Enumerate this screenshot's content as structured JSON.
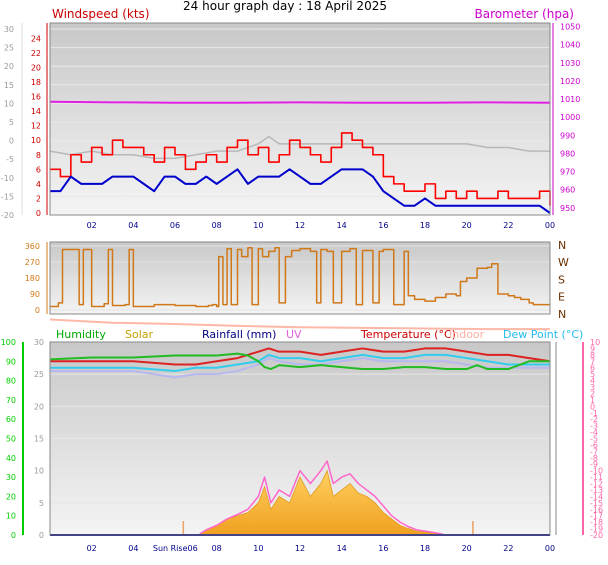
{
  "title": "24 hour graph day : 18 April 2025",
  "colors": {
    "wind_avg": "#0000cc",
    "wind_gust": "#ff0000",
    "barometer": "#e020e0",
    "wind_dir": "#d07818",
    "humidity": "#22bb22",
    "temperature": "#dd2222",
    "dew_point": "#33ccee",
    "indoor": "#ffb8a8",
    "solar": "#ffc040",
    "uv": "#ff66cc",
    "rainfall": "#000080",
    "axis_left_wind": "#cc0000",
    "axis_right_baro": "#cc00cc",
    "axis_left_green": "#00cc00",
    "axis_right_pink": "#ff66aa"
  },
  "chart_data": [
    {
      "type": "line",
      "panel": "wind-barometer",
      "left_axis_title": "Windspeed (kts)",
      "right_axis_title": "Barometer (hpa)",
      "x_ticks": [
        "02",
        "04",
        "06",
        "08",
        "10",
        "12",
        "14",
        "16",
        "18",
        "20",
        "22",
        "00"
      ],
      "x_range_hours": [
        0,
        24
      ],
      "y_outer_ticks": [
        "30",
        "25",
        "20",
        "15",
        "10",
        "5",
        "0",
        "-5",
        "-10",
        "-15",
        "-20"
      ],
      "y_left_ticks": [
        "24",
        "22",
        "20",
        "18",
        "16",
        "14",
        "12",
        "10",
        "8",
        "6",
        "4",
        "2",
        "0"
      ],
      "y_left_range": [
        0,
        25
      ],
      "y_right_ticks": [
        "1050",
        "1040",
        "1030",
        "1020",
        "1010",
        "1000",
        "990",
        "980",
        "970",
        "960",
        "950"
      ],
      "y_right_range": [
        946,
        1052
      ],
      "series": [
        {
          "key": "gust",
          "x": [
            0,
            0.5,
            1,
            1.5,
            2,
            2.5,
            3,
            3.5,
            4,
            4.5,
            5,
            5.5,
            6,
            6.5,
            7,
            7.5,
            8,
            8.5,
            9,
            9.5,
            10,
            10.5,
            11,
            11.5,
            12,
            12.5,
            13,
            13.5,
            14,
            14.5,
            15,
            15.5,
            16,
            16.5,
            17,
            17.5,
            18,
            18.5,
            19,
            19.5,
            20,
            20.5,
            21,
            21.5,
            22,
            22.5,
            23,
            23.5,
            24
          ],
          "y": [
            6,
            5,
            8,
            7,
            9,
            8,
            10,
            9,
            9,
            8,
            7,
            9,
            8,
            6,
            7,
            8,
            7,
            9,
            10,
            8,
            9,
            7,
            8,
            10,
            9,
            8,
            7,
            9,
            11,
            10,
            9,
            8,
            5,
            4,
            3,
            3,
            4,
            2,
            3,
            2,
            3,
            2,
            2,
            3,
            2,
            2,
            2,
            3,
            1
          ]
        },
        {
          "key": "average",
          "x": [
            0,
            0.5,
            1,
            1.5,
            2,
            2.5,
            3,
            3.5,
            4,
            4.5,
            5,
            5.5,
            6,
            6.5,
            7,
            7.5,
            8,
            8.5,
            9,
            9.5,
            10,
            10.5,
            11,
            11.5,
            12,
            12.5,
            13,
            13.5,
            14,
            14.5,
            15,
            15.5,
            16,
            16.5,
            17,
            17.5,
            18,
            18.5,
            19,
            19.5,
            20,
            20.5,
            21,
            21.5,
            22,
            22.5,
            23,
            23.5,
            24
          ],
          "y": [
            3,
            3,
            5,
            4,
            4,
            4,
            5,
            5,
            5,
            4,
            3,
            5,
            5,
            4,
            4,
            5,
            4,
            5,
            6,
            4,
            5,
            5,
            5,
            6,
            5,
            4,
            4,
            5,
            6,
            6,
            6,
            5,
            3,
            2,
            1,
            1,
            2,
            1,
            1,
            1,
            1,
            1,
            1,
            1,
            1,
            1,
            1,
            1,
            0
          ]
        },
        {
          "key": "barometer",
          "x": [
            0,
            3,
            6,
            9,
            12,
            15,
            18,
            21,
            24
          ],
          "y": [
            1008.5,
            1008.2,
            1008,
            1008,
            1008.2,
            1008,
            1008,
            1008.2,
            1008
          ]
        },
        {
          "key": "gray-trace",
          "x": [
            0,
            1,
            2,
            3,
            4,
            5,
            6,
            7,
            8,
            9,
            10,
            10.5,
            11,
            12,
            13,
            14,
            15,
            16,
            17,
            18,
            19,
            20,
            21,
            22,
            23,
            24
          ],
          "y": [
            8.5,
            8,
            8.5,
            8,
            8,
            7.5,
            7.5,
            8,
            8.5,
            8.5,
            9.5,
            10.5,
            9.5,
            9.5,
            9.5,
            9.5,
            9.5,
            9.5,
            9.5,
            9.5,
            9.5,
            9.5,
            9,
            9,
            8.5,
            8.5
          ]
        }
      ]
    },
    {
      "type": "line",
      "panel": "wind-direction",
      "compass_labels": [
        "N",
        "W",
        "S",
        "E",
        "N"
      ],
      "y_left_ticks": [
        "360",
        "270",
        "180",
        "90",
        "0"
      ],
      "y_range": [
        0,
        360
      ],
      "x": [
        0,
        0.4,
        0.6,
        1.4,
        1.6,
        2,
        2.6,
        2.8,
        3,
        3.6,
        3.8,
        4,
        5,
        6,
        7,
        7.6,
        7.8,
        8,
        8.1,
        8.3,
        8.5,
        8.7,
        9,
        9.2,
        9.5,
        9.7,
        10,
        10.2,
        10.5,
        10.8,
        11,
        11.3,
        11.6,
        12,
        12.5,
        12.8,
        13,
        13.3,
        13.6,
        14,
        14.4,
        14.7,
        15,
        15.5,
        15.8,
        16,
        16.5,
        17,
        17.2,
        17.5,
        18,
        18.5,
        19,
        19.5,
        19.7,
        20,
        20.5,
        21,
        21.2,
        21.5,
        22,
        22.3,
        22.6,
        23,
        23.2,
        24
      ],
      "y": [
        20,
        40,
        340,
        30,
        340,
        20,
        35,
        340,
        25,
        30,
        340,
        20,
        30,
        25,
        20,
        25,
        30,
        20,
        300,
        30,
        345,
        30,
        340,
        300,
        350,
        30,
        345,
        300,
        330,
        350,
        40,
        300,
        335,
        345,
        330,
        40,
        340,
        330,
        40,
        330,
        345,
        30,
        335,
        40,
        330,
        340,
        30,
        330,
        80,
        60,
        50,
        70,
        90,
        80,
        160,
        180,
        235,
        240,
        260,
        90,
        80,
        70,
        60,
        40,
        30,
        30
      ]
    },
    {
      "type": "line",
      "panel": "temperature-humidity-solar",
      "legend": [
        "Humidity",
        "Solar",
        "Rainfall (mm)",
        "UV",
        "Temperature (°C)",
        "Indoor",
        "Dew Point (°C)"
      ],
      "x_ticks": [
        "02",
        "04",
        "Sun Rise",
        "06",
        "08",
        "10",
        "12",
        "14",
        "16",
        "18",
        "20",
        "22",
        "00"
      ],
      "y_left_green_ticks": [
        "100",
        "90",
        "80",
        "70",
        "60",
        "50",
        "40",
        "30",
        "20",
        "10",
        "0"
      ],
      "y_left_green_range": [
        0,
        100
      ],
      "y_left_gray_ticks": [
        "30",
        "25",
        "20",
        "15",
        "10",
        "5",
        "0"
      ],
      "y_left_gray_range": [
        0,
        30
      ],
      "y_right_pink_ticks": [
        "10",
        "9",
        "8",
        "7",
        "6",
        "5",
        "4",
        "3",
        "2",
        "1",
        "0",
        "-1",
        "-2",
        "-3",
        "-4",
        "-5",
        "-6",
        "-7",
        "-8",
        "-9",
        "-10",
        "-11",
        "-12",
        "-13",
        "-14",
        "-15",
        "-16",
        "-17",
        "-18",
        "-19",
        "-20"
      ],
      "y_right_pink_range": [
        -20,
        10
      ],
      "series": [
        {
          "key": "humidity",
          "x": [
            0,
            2,
            4,
            6,
            7,
            8,
            9,
            9.5,
            10,
            10.3,
            10.6,
            11,
            12,
            13,
            14,
            15,
            16,
            17,
            18,
            19,
            20,
            20.5,
            21,
            22,
            22.5,
            23,
            24
          ],
          "y": [
            91,
            92,
            92,
            93,
            93,
            93,
            94,
            93,
            90,
            87,
            86,
            88,
            87,
            88,
            87,
            86,
            86,
            87,
            87,
            86,
            86,
            88,
            86,
            86,
            88,
            90,
            90
          ]
        },
        {
          "key": "temperature",
          "x": [
            0,
            2,
            4,
            6,
            7,
            8,
            9,
            10,
            10.5,
            11,
            12,
            13,
            14,
            15,
            16,
            17,
            18,
            19,
            20,
            21,
            22,
            23,
            24
          ],
          "y": [
            7,
            7,
            7,
            6.5,
            6.5,
            7,
            7.5,
            8.5,
            9,
            8.5,
            8.5,
            8,
            8.5,
            9,
            8.5,
            8.5,
            9,
            9,
            8.5,
            8,
            8,
            7.5,
            7
          ]
        },
        {
          "key": "dew_point",
          "x": [
            0,
            2,
            4,
            6,
            7,
            8,
            9,
            10,
            10.5,
            11,
            12,
            13,
            14,
            15,
            16,
            17,
            18,
            19,
            20,
            21,
            22,
            23,
            24
          ],
          "y": [
            6,
            6,
            6,
            5.5,
            6,
            6,
            6.5,
            7,
            8,
            7.5,
            7.5,
            7,
            7.5,
            8,
            7.5,
            7.5,
            8,
            8,
            7.5,
            7,
            6.5,
            6.5,
            6.5
          ]
        },
        {
          "key": "indoor",
          "x": [
            0,
            3,
            6,
            9,
            12,
            15,
            18,
            21,
            24
          ],
          "y": [
            13.5,
            13,
            12.8,
            12.5,
            12.3,
            12.2,
            12.1,
            12,
            12
          ]
        },
        {
          "key": "cyan_lavender",
          "x": [
            0,
            2,
            4,
            6,
            7,
            8,
            9,
            10,
            10.5,
            11,
            12,
            13,
            14,
            15,
            16,
            17,
            18,
            19,
            20,
            21,
            22,
            23,
            24
          ],
          "y": [
            5.5,
            5.5,
            5.5,
            4.5,
            5,
            5,
            5.5,
            6.5,
            7.5,
            7,
            6.5,
            6.5,
            7,
            7.5,
            7,
            7,
            7,
            7,
            6.5,
            6,
            6,
            6,
            6
          ]
        },
        {
          "key": "solar",
          "x": [
            7.2,
            7.5,
            8,
            8.5,
            9,
            9.5,
            10,
            10.3,
            10.6,
            11,
            11.5,
            12,
            12.5,
            13,
            13.3,
            13.6,
            14,
            14.4,
            14.8,
            15.2,
            15.6,
            16,
            16.4,
            16.8,
            17.2,
            17.6,
            18.2,
            18.6,
            19
          ],
          "y": [
            0.2,
            0.8,
            1.5,
            2.5,
            3,
            3.5,
            5,
            7.5,
            4,
            6,
            5,
            9,
            6,
            8,
            10,
            6,
            7,
            8,
            6.5,
            6,
            5,
            3.5,
            2.5,
            1.5,
            1,
            0.6,
            0.4,
            0.2,
            0
          ]
        },
        {
          "key": "uv",
          "x": [
            7.2,
            7.5,
            8,
            8.5,
            9,
            9.5,
            10,
            10.3,
            10.6,
            11,
            11.5,
            12,
            12.5,
            13,
            13.3,
            13.6,
            14,
            14.4,
            14.8,
            15.2,
            15.6,
            16,
            16.4,
            16.8,
            17.2,
            17.6,
            18.2,
            18.6,
            19
          ],
          "y": [
            0.2,
            0.8,
            1.5,
            2.5,
            3.2,
            4,
            6,
            9,
            5,
            7,
            6,
            10,
            8,
            10,
            11.5,
            8,
            9,
            9.5,
            8,
            7,
            6,
            4.5,
            3,
            2,
            1.3,
            0.8,
            0.5,
            0.3,
            0
          ]
        },
        {
          "key": "rainfall",
          "x": [
            0,
            24
          ],
          "y": [
            0,
            0
          ]
        }
      ]
    }
  ]
}
